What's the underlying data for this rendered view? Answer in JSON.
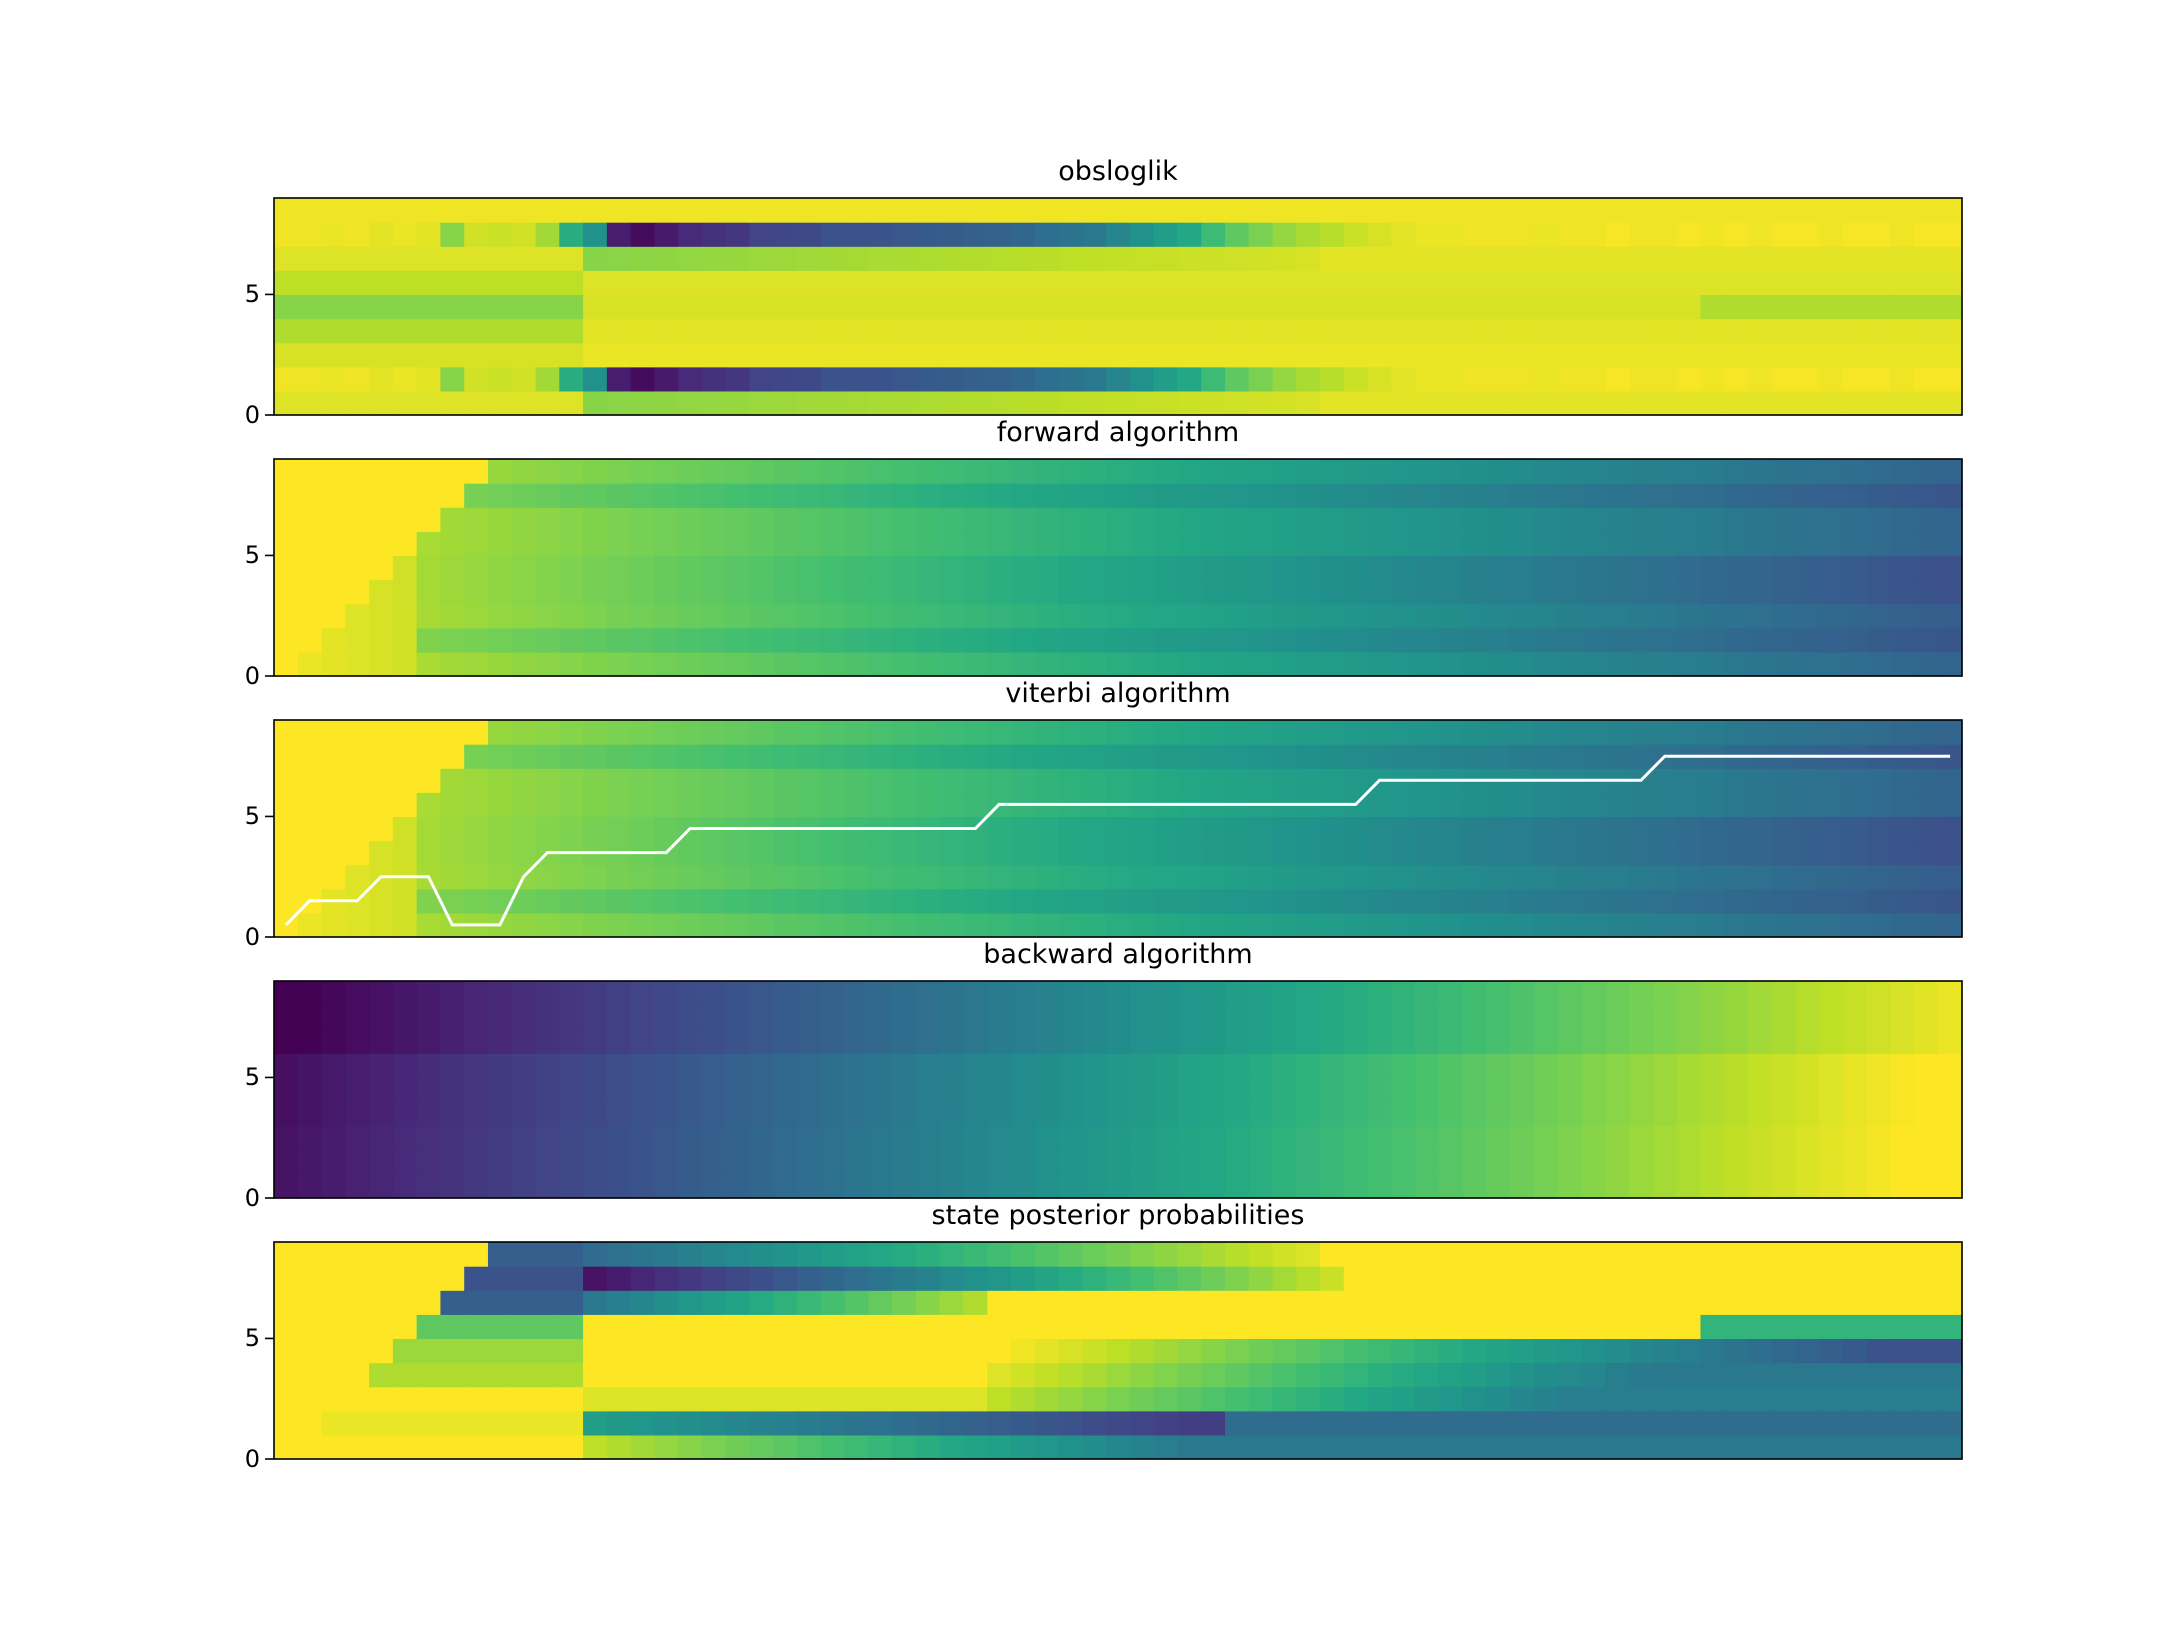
{
  "chart_data": [
    {
      "type": "heatmap",
      "title": "obsloglik",
      "pattern": "obsloglik",
      "n_frames": 71,
      "n_states": 9,
      "yticks": [
        0,
        5
      ],
      "colormap": "viridis"
    },
    {
      "type": "heatmap",
      "title": "forward algorithm",
      "pattern": "forward",
      "n_frames": 71,
      "n_states": 9,
      "yticks": [
        0,
        5
      ],
      "colormap": "viridis"
    },
    {
      "type": "heatmap",
      "title": "viterbi algorithm",
      "pattern": "forward",
      "n_frames": 71,
      "n_states": 9,
      "yticks": [
        0,
        5
      ],
      "colormap": "viridis",
      "path": {
        "color": "#ffffff",
        "x": [
          0,
          1,
          3,
          4,
          6,
          7,
          9,
          10,
          11,
          16,
          17,
          29,
          30,
          45,
          46,
          57,
          58,
          70
        ],
        "y": [
          0,
          1,
          1,
          2,
          2,
          0,
          0,
          2,
          3,
          3,
          4,
          4,
          5,
          5,
          6,
          6,
          7,
          7
        ]
      }
    },
    {
      "type": "heatmap",
      "title": "backward algorithm",
      "pattern": "backward",
      "n_frames": 71,
      "n_states": 9,
      "yticks": [
        0,
        5
      ],
      "colormap": "viridis"
    },
    {
      "type": "heatmap",
      "title": "state posterior probabilities",
      "pattern": "posterior",
      "n_frames": 71,
      "n_states": 9,
      "yticks": [
        0,
        5
      ],
      "colormap": "viridis"
    }
  ]
}
